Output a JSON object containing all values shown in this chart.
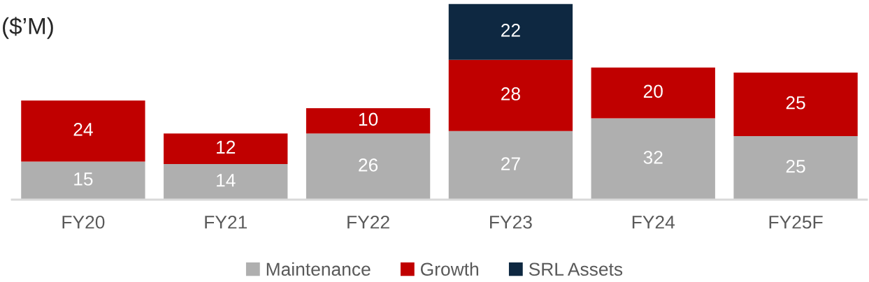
{
  "chart_data": {
    "type": "bar",
    "title": "($’M)",
    "categories": [
      "FY20",
      "FY21",
      "FY22",
      "FY23",
      "FY24",
      "FY25F"
    ],
    "series": [
      {
        "name": "Maintenance",
        "color": "#afafaf",
        "values": [
          15,
          14,
          26,
          27,
          32,
          25
        ]
      },
      {
        "name": "Growth",
        "color": "#c00000",
        "values": [
          24,
          12,
          10,
          28,
          20,
          25
        ]
      },
      {
        "name": "SRL Assets",
        "color": "#0e2841",
        "values": [
          null,
          null,
          null,
          22,
          null,
          null
        ]
      }
    ],
    "stacked": true,
    "data_labels": true,
    "legend": "bottom",
    "ylim": [
      0,
      78
    ],
    "tick_labels": "x",
    "grid": false
  }
}
